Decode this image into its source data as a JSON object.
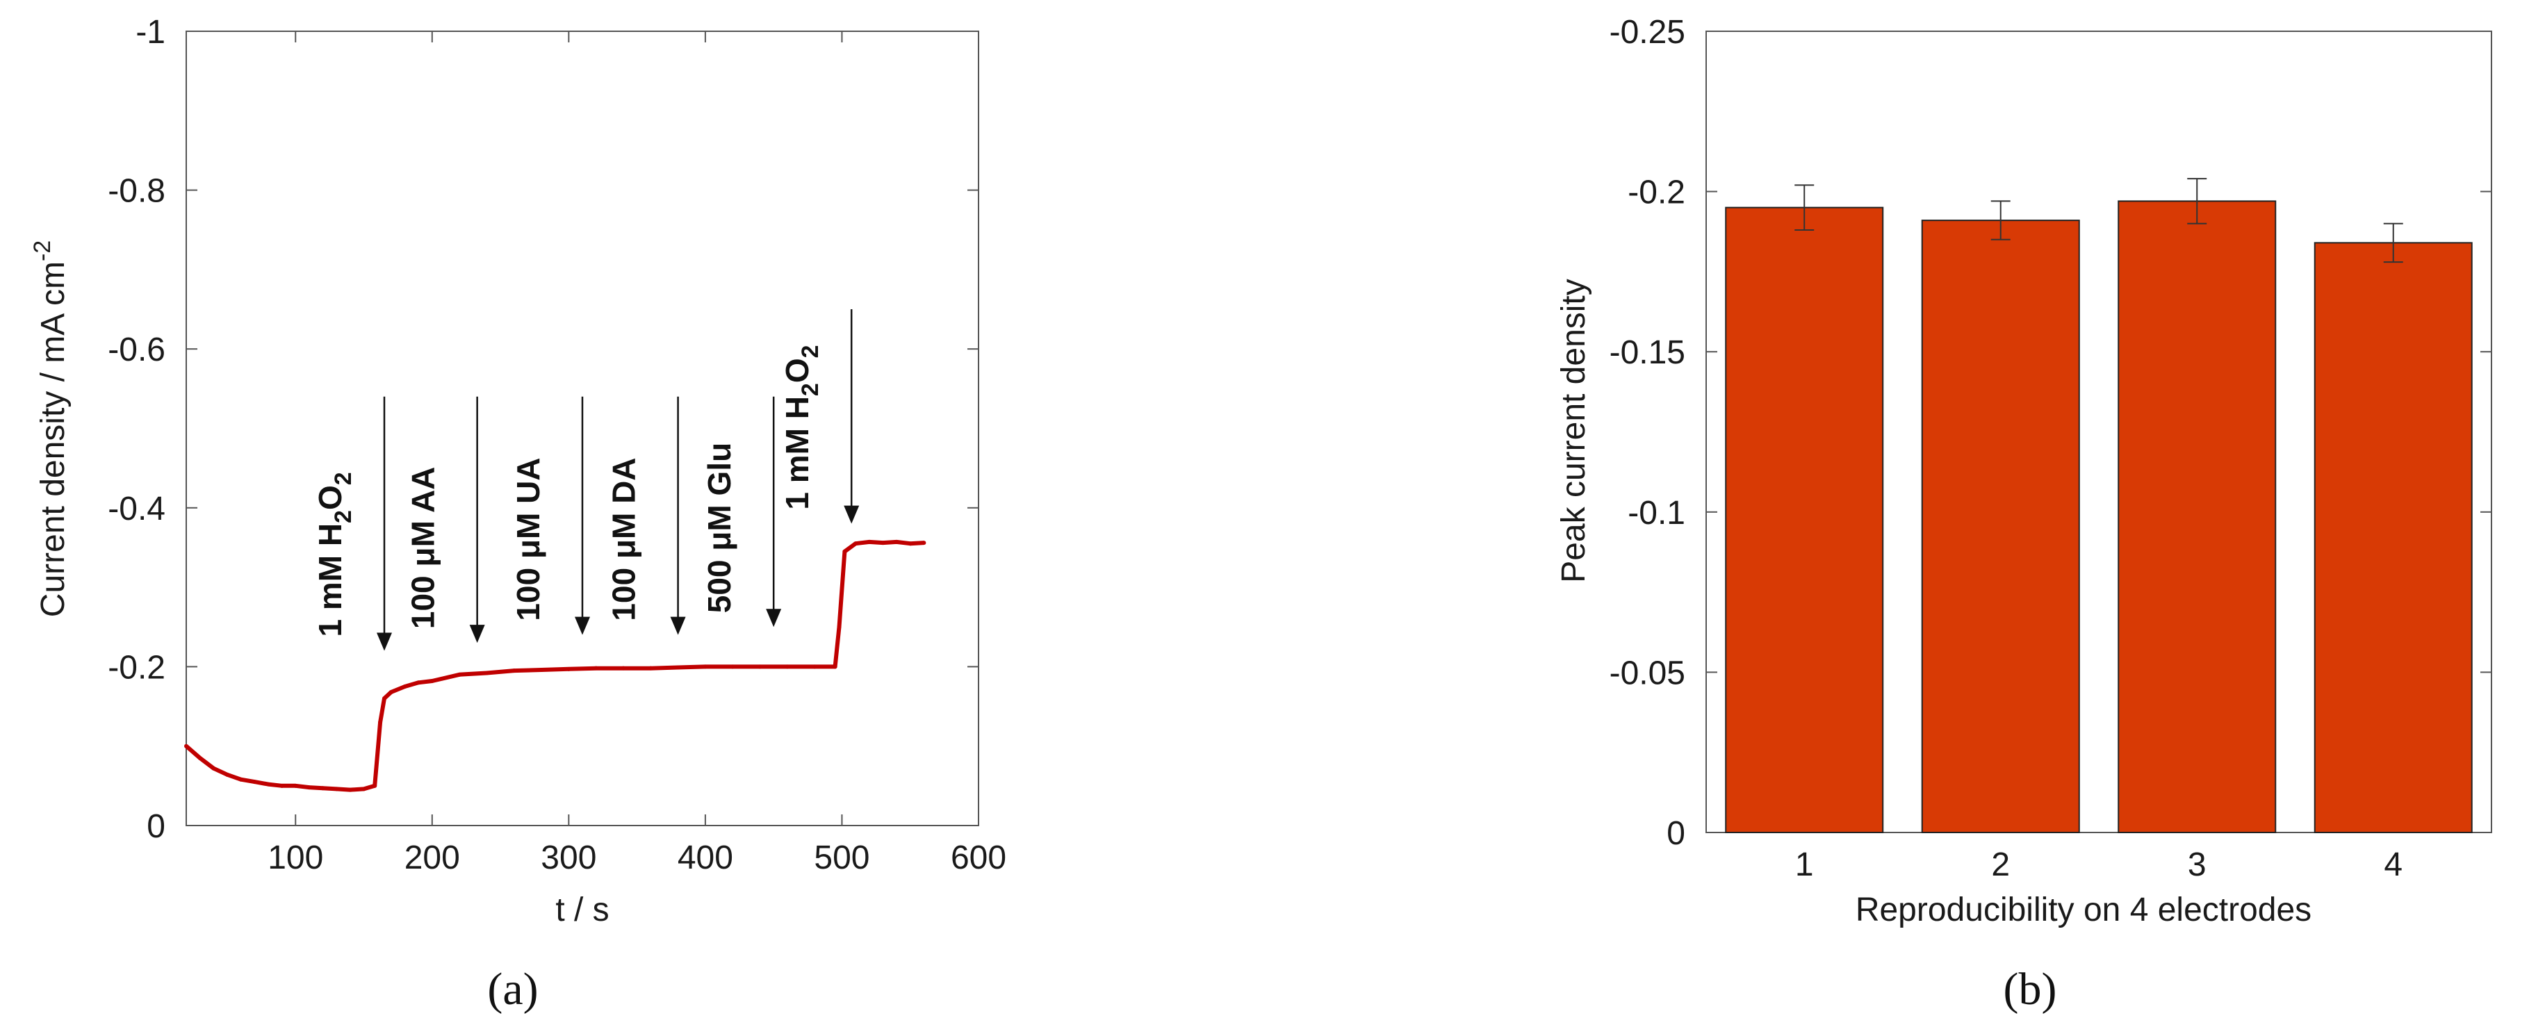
{
  "chart_data": [
    {
      "type": "line",
      "panel_label": "(a)",
      "xlabel": "t / s",
      "ylabel": "Current density / mA cm",
      "ylabel_sup": "-2",
      "xlim": [
        20,
        600
      ],
      "ylim": [
        0,
        -1
      ],
      "x_ticks": [
        "100",
        "200",
        "300",
        "400",
        "500",
        "600"
      ],
      "y_ticks": [
        "0",
        "-0.2",
        "-0.4",
        "-0.6",
        "-0.8",
        "-1"
      ],
      "series": [
        {
          "color": "#c00000",
          "x": [
            20,
            30,
            40,
            50,
            60,
            70,
            80,
            90,
            100,
            110,
            120,
            130,
            140,
            150,
            158,
            162,
            165,
            170,
            180,
            190,
            200,
            220,
            240,
            260,
            280,
            300,
            320,
            340,
            360,
            380,
            400,
            420,
            440,
            460,
            480,
            495,
            498,
            502,
            510,
            520,
            530,
            540,
            550,
            560
          ],
          "y": [
            -0.1,
            -0.085,
            -0.072,
            -0.064,
            -0.058,
            -0.055,
            -0.052,
            -0.05,
            -0.05,
            -0.048,
            -0.047,
            -0.046,
            -0.045,
            -0.046,
            -0.05,
            -0.13,
            -0.16,
            -0.168,
            -0.175,
            -0.18,
            -0.182,
            -0.19,
            -0.192,
            -0.195,
            -0.196,
            -0.197,
            -0.198,
            -0.198,
            -0.198,
            -0.199,
            -0.2,
            -0.2,
            -0.2,
            -0.2,
            -0.2,
            -0.2,
            -0.25,
            -0.345,
            -0.355,
            -0.357,
            -0.356,
            -0.357,
            -0.355,
            -0.356
          ]
        }
      ],
      "annotations": [
        {
          "text": "1 mM H",
          "sub1": "2",
          "mid": "O",
          "sub2": "2",
          "arrow_x": 165,
          "arrow_top": -0.54,
          "arrow_bottom": -0.22
        },
        {
          "text": "100  μM  AA",
          "arrow_x": 233,
          "arrow_top": -0.54,
          "arrow_bottom": -0.23
        },
        {
          "text": "100  μM  UA",
          "arrow_x": 310,
          "arrow_top": -0.54,
          "arrow_bottom": -0.24
        },
        {
          "text": "100  μM  DA",
          "arrow_x": 380,
          "arrow_top": -0.54,
          "arrow_bottom": -0.24
        },
        {
          "text": "500  μM  Glu",
          "arrow_x": 450,
          "arrow_top": -0.54,
          "arrow_bottom": -0.25
        },
        {
          "text": "1 mM H",
          "sub1": "2",
          "mid": "O",
          "sub2": "2",
          "arrow_x": 507,
          "arrow_top": -0.65,
          "arrow_bottom": -0.38
        }
      ]
    },
    {
      "type": "bar",
      "panel_label": "(b)",
      "xlabel": "Reproducibility on 4 electrodes",
      "ylabel": "Peak current density",
      "categories": [
        "1",
        "2",
        "3",
        "4"
      ],
      "values": [
        -0.195,
        -0.191,
        -0.197,
        -0.184
      ],
      "errors": [
        0.007,
        0.006,
        0.007,
        0.006
      ],
      "ylim": [
        0,
        -0.25
      ],
      "y_ticks": [
        "0",
        "-0.05",
        "-0.1",
        "-0.15",
        "-0.2",
        "-0.25"
      ],
      "bar_color": "#d83a05"
    }
  ]
}
